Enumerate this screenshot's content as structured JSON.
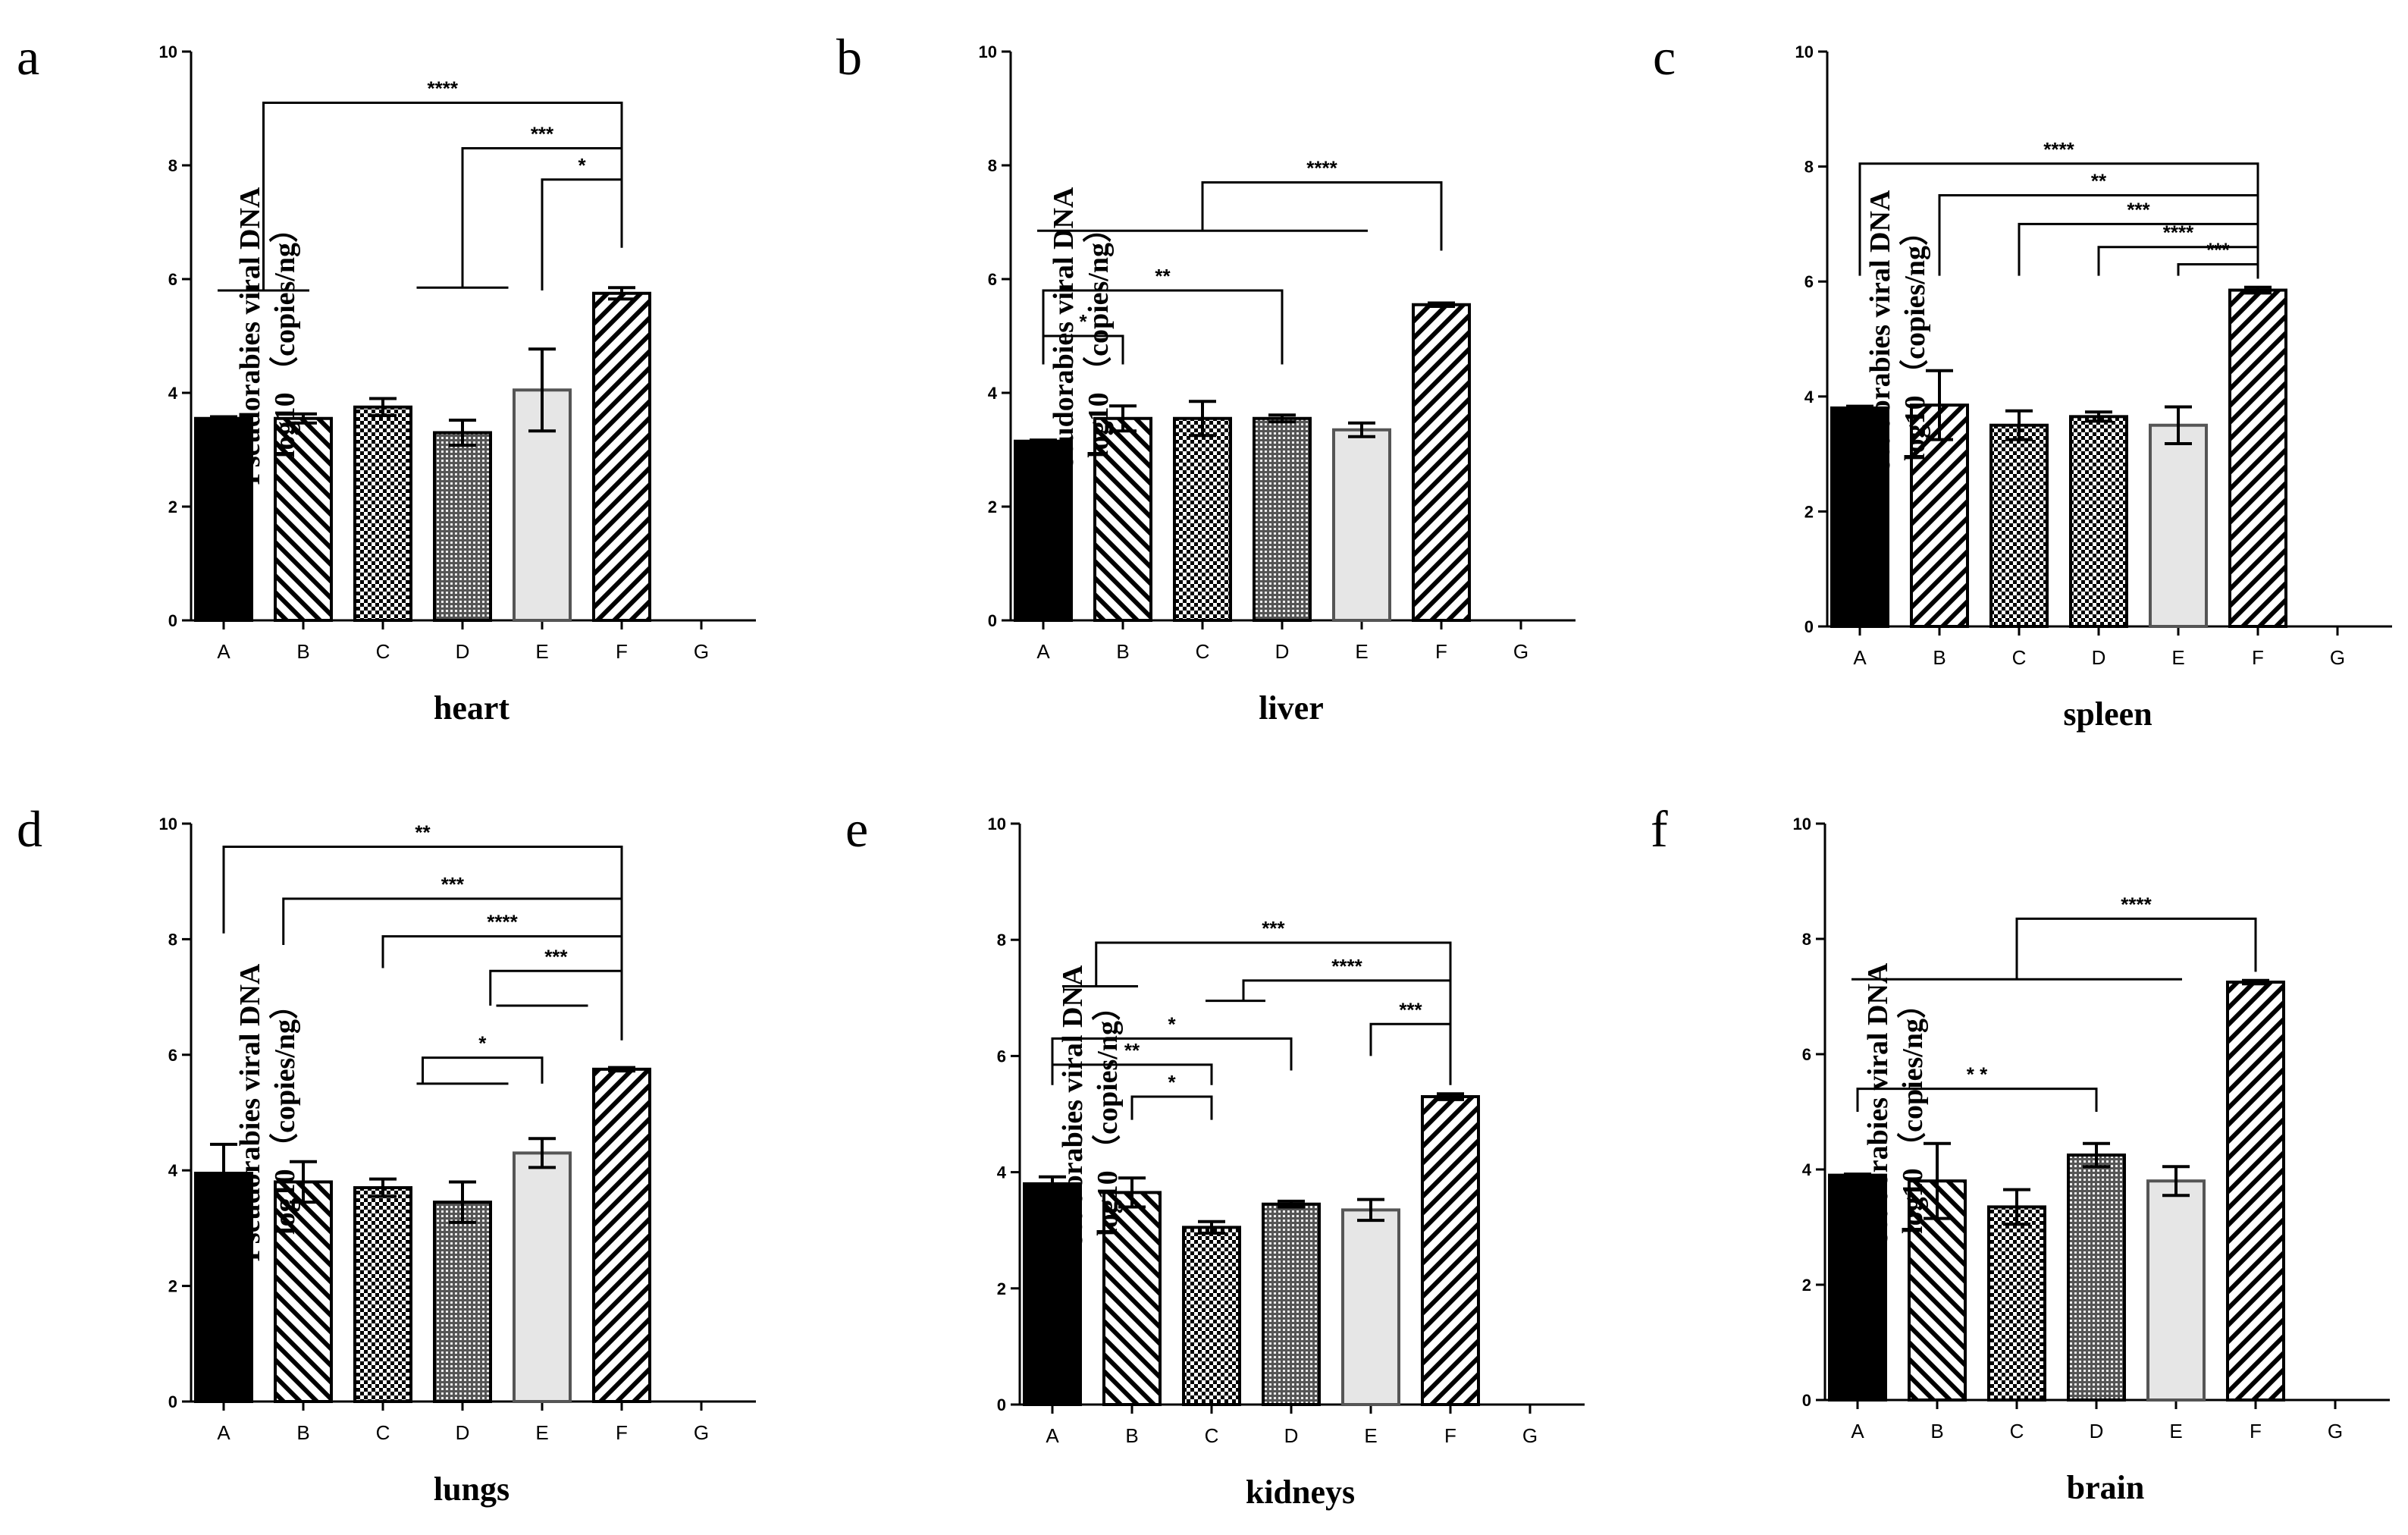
{
  "chart_data": [
    {
      "panel": "a",
      "type": "bar",
      "title": "",
      "xlabel": "heart",
      "ylabel": [
        "Pseudorabies viral DNA",
        "log10 （copies/ng）"
      ],
      "ylim": [
        0,
        10
      ],
      "yticks": [
        0,
        2,
        4,
        6,
        8,
        10
      ],
      "categories": [
        "A",
        "B",
        "C",
        "D",
        "E",
        "F",
        "G"
      ],
      "values": [
        3.55,
        3.55,
        3.75,
        3.3,
        4.05,
        5.75,
        null
      ],
      "errors": [
        0.03,
        0.08,
        0.15,
        0.22,
        0.72,
        0.1,
        null
      ],
      "patterns": [
        "solid",
        "back",
        "checker",
        "dense",
        "light",
        "fwd",
        "none"
      ],
      "groups": [
        {
          "from": 0,
          "to": 1,
          "y": 5.8
        },
        {
          "from": 2.5,
          "to": 3.5,
          "y": 5.85
        }
      ],
      "annotations": [
        {
          "from": 0.5,
          "to": 5,
          "y": 9.1,
          "label": "****",
          "left_end": 5.8
        },
        {
          "from": 3,
          "to": 5,
          "y": 8.3,
          "label": "***",
          "left_end": 5.85
        },
        {
          "from": 4,
          "to": 5,
          "y": 7.75,
          "label": "*",
          "left_end": 5.8
        }
      ]
    },
    {
      "panel": "b",
      "type": "bar",
      "title": "",
      "xlabel": "liver",
      "ylabel": [
        "Pseudorabies viral DNA",
        "log10 （copies/ng）"
      ],
      "ylim": [
        0,
        10
      ],
      "yticks": [
        0,
        2,
        4,
        6,
        8,
        10
      ],
      "categories": [
        "A",
        "B",
        "C",
        "D",
        "E",
        "F",
        "G"
      ],
      "values": [
        3.15,
        3.55,
        3.55,
        3.55,
        3.35,
        5.55,
        null
      ],
      "errors": [
        0.02,
        0.22,
        0.3,
        0.06,
        0.12,
        0.03,
        null
      ],
      "patterns": [
        "solid",
        "back",
        "checker",
        "dense",
        "light",
        "fwd",
        "none"
      ],
      "groups": [
        {
          "from": 0,
          "to": 4,
          "y": 6.85
        }
      ],
      "annotations": [
        {
          "from": 2,
          "to": 5,
          "y": 7.7,
          "label": "****",
          "left_end": 6.85
        },
        {
          "from": 0,
          "to": 1,
          "y": 5.0,
          "label": "*",
          "left_end": 4.5
        },
        {
          "from": 0,
          "to": 3,
          "y": 5.8,
          "label": "**",
          "left_end": 4.5
        }
      ]
    },
    {
      "panel": "c",
      "type": "bar",
      "title": "",
      "xlabel": "spleen",
      "ylabel": [
        "Pseudorabies viral DNA",
        "log10 （copies/ng）"
      ],
      "ylim": [
        0,
        10
      ],
      "yticks": [
        0,
        2,
        4,
        6,
        8,
        10
      ],
      "categories": [
        "A",
        "B",
        "C",
        "D",
        "E",
        "F",
        "G"
      ],
      "values": [
        3.8,
        3.85,
        3.5,
        3.65,
        3.5,
        5.85,
        null
      ],
      "errors": [
        0.03,
        0.6,
        0.25,
        0.08,
        0.32,
        0.05,
        null
      ],
      "patterns": [
        "solid",
        "fwd",
        "checker",
        "checker",
        "light",
        "fwd",
        "none"
      ],
      "groups": [],
      "annotations": [
        {
          "from": 0,
          "to": 5,
          "y": 8.05,
          "label": "****",
          "left_end": 6.1
        },
        {
          "from": 1,
          "to": 5,
          "y": 7.5,
          "label": "**",
          "left_end": 6.1
        },
        {
          "from": 2,
          "to": 5,
          "y": 7.0,
          "label": "***",
          "left_end": 6.1
        },
        {
          "from": 3,
          "to": 5,
          "y": 6.6,
          "label": "****",
          "left_end": 6.1
        },
        {
          "from": 4,
          "to": 5,
          "y": 6.3,
          "label": "***",
          "left_end": 6.1
        }
      ]
    },
    {
      "panel": "d",
      "type": "bar",
      "title": "",
      "xlabel": "lungs",
      "ylabel": [
        "Pseudorabies viral DNA",
        "log10 （copies/ng）"
      ],
      "ylim": [
        0,
        10
      ],
      "yticks": [
        0,
        2,
        4,
        6,
        8,
        10
      ],
      "categories": [
        "A",
        "B",
        "C",
        "D",
        "E",
        "F",
        "G"
      ],
      "values": [
        3.95,
        3.8,
        3.7,
        3.45,
        4.3,
        5.75,
        null
      ],
      "errors": [
        0.5,
        0.35,
        0.15,
        0.35,
        0.25,
        0.03,
        null
      ],
      "patterns": [
        "solid",
        "back",
        "checker",
        "dense",
        "light",
        "fwd",
        "none"
      ],
      "groups": [
        {
          "from": 2.5,
          "to": 3.5,
          "y": 5.5
        },
        {
          "from": 3.5,
          "to": 4.5,
          "y": 6.85
        }
      ],
      "annotations": [
        {
          "from": 0,
          "to": 5,
          "y": 9.6,
          "label": "**",
          "left_end": 8.1
        },
        {
          "from": 0.75,
          "to": 5,
          "y": 8.7,
          "label": "***",
          "left_end": 7.9
        },
        {
          "from": 2,
          "to": 5,
          "y": 8.05,
          "label": "****",
          "left_end": 7.5
        },
        {
          "from": 3.35,
          "to": 5,
          "y": 7.45,
          "label": "***",
          "left_end": 6.85
        },
        {
          "from": 2.5,
          "to": 4,
          "y": 5.95,
          "label": "*",
          "left_end": 5.5
        }
      ]
    },
    {
      "panel": "e",
      "type": "bar",
      "title": "",
      "xlabel": "kidneys",
      "ylabel": [
        "Pseudorabies viral DNA",
        "log10 （copies/ng）"
      ],
      "ylim": [
        0,
        10
      ],
      "yticks": [
        0,
        2,
        4,
        6,
        8,
        10
      ],
      "categories": [
        "A",
        "B",
        "C",
        "D",
        "E",
        "F",
        "G"
      ],
      "values": [
        3.8,
        3.65,
        3.05,
        3.45,
        3.35,
        5.3,
        null
      ],
      "errors": [
        0.12,
        0.25,
        0.1,
        0.05,
        0.18,
        0.05,
        null
      ],
      "patterns": [
        "solid",
        "back",
        "checker",
        "dense",
        "light",
        "fwd",
        "none"
      ],
      "groups": [
        {
          "from": 0.2,
          "to": 1,
          "y": 7.2
        },
        {
          "from": 2,
          "to": 2.6,
          "y": 6.95
        }
      ],
      "annotations": [
        {
          "from": 0.55,
          "to": 5,
          "y": 7.95,
          "label": "***",
          "left_end": 7.2
        },
        {
          "from": 2.4,
          "to": 5,
          "y": 7.3,
          "label": "****",
          "left_end": 6.95
        },
        {
          "from": 4,
          "to": 5,
          "y": 6.55,
          "label": "***",
          "left_end": 6.0
        },
        {
          "from": 0,
          "to": 3,
          "y": 6.3,
          "label": "*",
          "left_end": 5.75
        },
        {
          "from": 0,
          "to": 2,
          "y": 5.85,
          "label": "**",
          "left_end": 5.5
        },
        {
          "from": 1,
          "to": 2,
          "y": 5.3,
          "label": "*",
          "left_end": 4.9
        }
      ]
    },
    {
      "panel": "f",
      "type": "bar",
      "title": "",
      "xlabel": "brain",
      "ylabel": [
        "Pseudorabies viral DNA",
        "log10 （copies/ng）"
      ],
      "ylim": [
        0,
        10
      ],
      "yticks": [
        0,
        2,
        4,
        6,
        8,
        10
      ],
      "categories": [
        "A",
        "B",
        "C",
        "D",
        "E",
        "F",
        "G"
      ],
      "values": [
        3.9,
        3.8,
        3.35,
        4.25,
        3.8,
        7.25,
        null
      ],
      "errors": [
        0.02,
        0.65,
        0.3,
        0.2,
        0.25,
        0.03,
        null
      ],
      "patterns": [
        "solid",
        "back",
        "checker",
        "dense",
        "light",
        "fwd",
        "none"
      ],
      "groups": [
        {
          "from": 0,
          "to": 4,
          "y": 7.3
        }
      ],
      "annotations": [
        {
          "from": 2,
          "to": 5,
          "y": 8.35,
          "label": "****",
          "left_end": 7.3
        },
        {
          "from": 0,
          "to": 3,
          "y": 5.4,
          "label": "* *",
          "left_end": 5.0
        }
      ]
    }
  ]
}
